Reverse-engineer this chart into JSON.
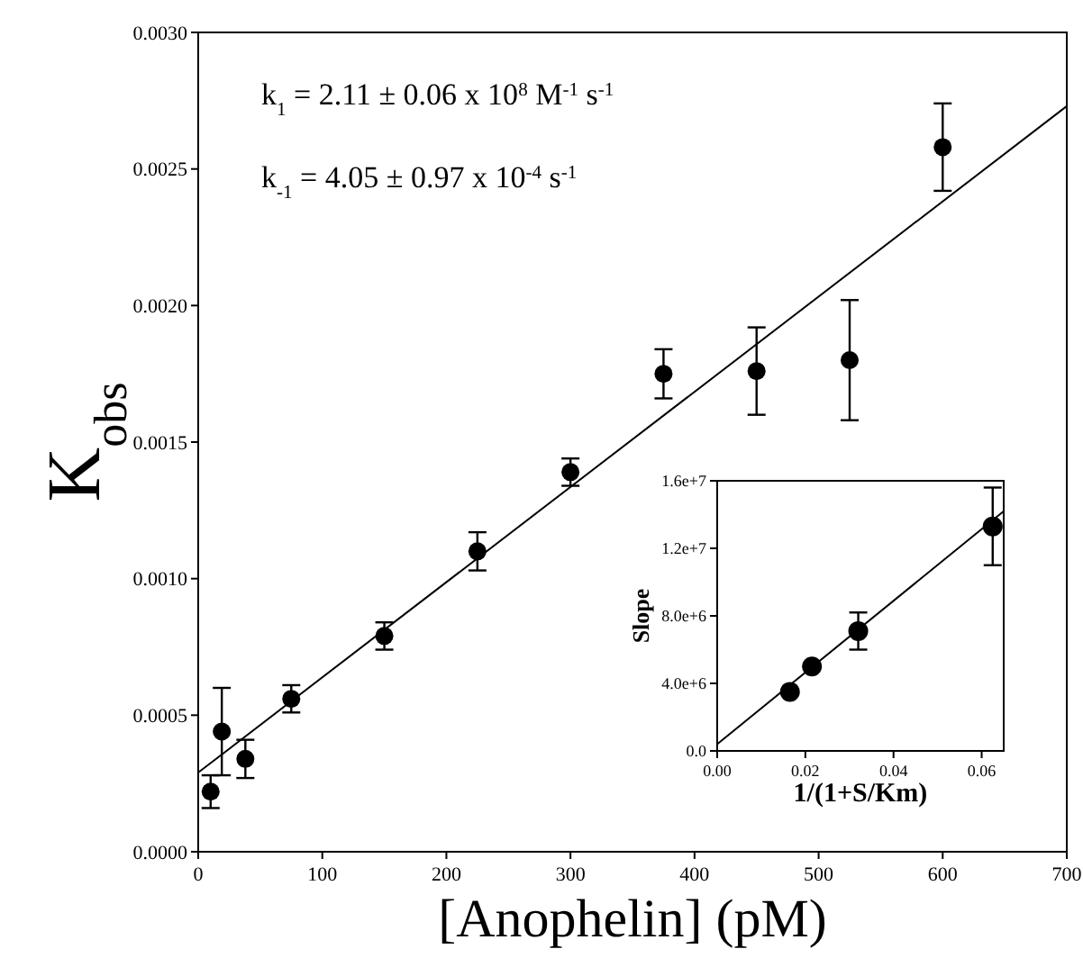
{
  "chart_data": [
    {
      "type": "scatter",
      "xlabel": "[Anophelin] (pM)",
      "ylabel": "K$_{obs}$",
      "xlim": [
        0,
        700
      ],
      "ylim": [
        0,
        0.003
      ],
      "xticks": [
        0,
        100,
        200,
        300,
        400,
        500,
        600,
        700
      ],
      "yticks": [
        {
          "value": 0,
          "label": "0.0000"
        },
        {
          "value": 0.0005,
          "label": "0.0005"
        },
        {
          "value": 0.001,
          "label": "0.0010"
        },
        {
          "value": 0.0015,
          "label": "0.0015"
        },
        {
          "value": 0.002,
          "label": "0.0020"
        },
        {
          "value": 0.0025,
          "label": "0.0025"
        },
        {
          "value": 0.003,
          "label": "0.0030"
        }
      ],
      "grid": false,
      "annotations": [
        "k$_{1}$ = 2.11 ±  0.06  x 10$^{8}$  M$^{-1}$ s$^{-1}$",
        "k$_{-1}$ = 4.05 ± 0.97 x 10$^{-4}$ s$^{-1}$"
      ],
      "series": [
        {
          "marker": "circle",
          "color": "#000000",
          "x": [
            10,
            19,
            38,
            75,
            150,
            225,
            300,
            375,
            450,
            525,
            600
          ],
          "values": [
            0.00022,
            0.00044,
            0.00034,
            0.00056,
            0.00079,
            0.0011,
            0.00139,
            0.00175,
            0.00176,
            0.0018,
            0.00258
          ],
          "errors": [
            6e-05,
            0.00016,
            7e-05,
            5e-05,
            5e-05,
            7e-05,
            5e-05,
            9e-05,
            0.00016,
            0.00022,
            0.00016
          ]
        },
        {
          "type": "line",
          "color": "#000000",
          "x": [
            0,
            700
          ],
          "values": [
            0.00029,
            0.00273
          ]
        }
      ]
    },
    {
      "type": "scatter",
      "xlabel": "1/(1+S/Km)",
      "ylabel": "Slope",
      "xlim": [
        0,
        0.065
      ],
      "ylim": [
        0,
        16000000
      ],
      "xticks": [
        {
          "value": 0,
          "label": "0.00"
        },
        {
          "value": 0.02,
          "label": "0.02"
        },
        {
          "value": 0.04,
          "label": "0.04"
        },
        {
          "value": 0.06,
          "label": "0.06"
        }
      ],
      "yticks": [
        {
          "value": 0,
          "label": "0.0"
        },
        {
          "value": 4000000,
          "label": "4.0e+6"
        },
        {
          "value": 8000000,
          "label": "8.0e+6"
        },
        {
          "value": 12000000,
          "label": "1.2e+7"
        },
        {
          "value": 16000000,
          "label": "1.6e+7"
        }
      ],
      "grid": false,
      "series": [
        {
          "marker": "circle",
          "color": "#000000",
          "x": [
            0.0165,
            0.0215,
            0.032,
            0.0625
          ],
          "values": [
            3500000,
            5000000,
            7100000,
            13300000
          ],
          "errors": [
            null,
            null,
            1100000,
            2300000
          ]
        },
        {
          "type": "line",
          "color": "#000000",
          "x": [
            0,
            0.065
          ],
          "values": [
            400000,
            14200000
          ]
        }
      ]
    }
  ]
}
